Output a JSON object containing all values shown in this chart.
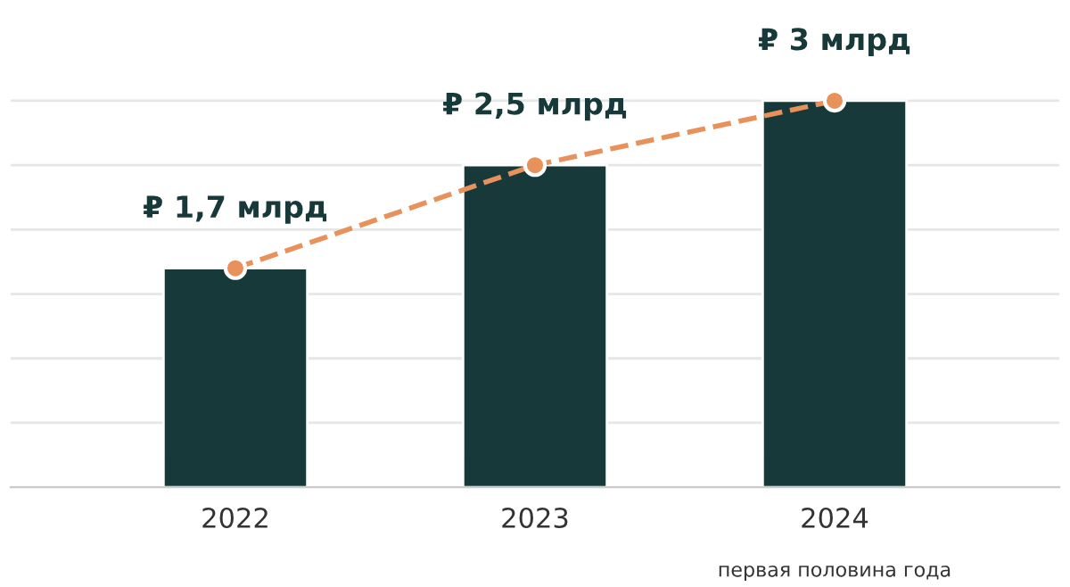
{
  "chart_data": {
    "type": "bar",
    "categories": [
      "2022",
      "2023",
      "2024"
    ],
    "values": [
      1.7,
      2.5,
      3
    ],
    "color": "#17393a",
    "value_labels": [
      "₽ 1,7 млрд",
      "₽ 2,5 млрд",
      "₽ 3 млрд"
    ],
    "series": [
      {
        "type": "line",
        "color": "#e8915a",
        "values": [
          1.7,
          2.5,
          3
        ],
        "marker": "circle",
        "line_style": "dashed"
      }
    ],
    "yticks": [
      {
        "value": 0,
        "label": null
      },
      {
        "value": 0.5,
        "label": null
      },
      {
        "value": 1,
        "label": null
      },
      {
        "value": 1.5,
        "label": null
      },
      {
        "value": 2,
        "label": null
      },
      {
        "value": 2.5,
        "label": null
      },
      {
        "value": 3,
        "label": null
      }
    ],
    "tick_labels": "x",
    "grid": "y",
    "annotations": [
      "первая половина года"
    ]
  }
}
